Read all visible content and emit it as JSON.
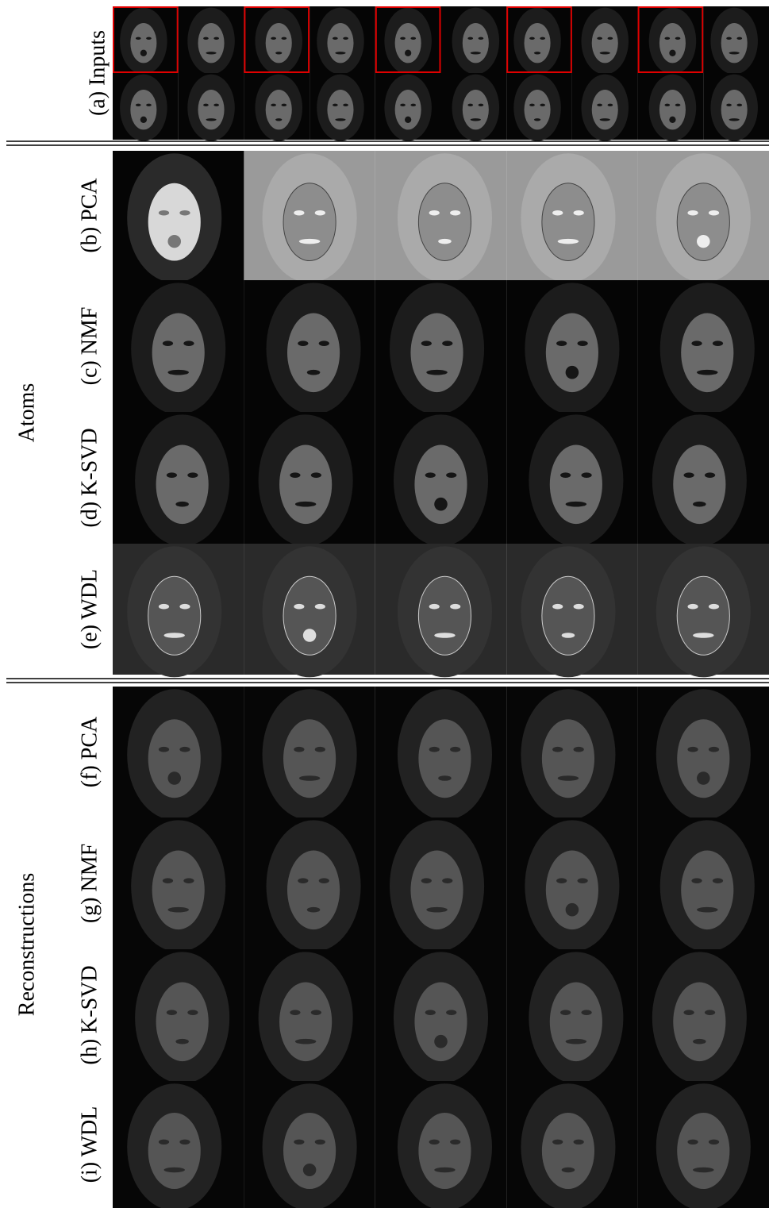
{
  "inputs": {
    "label": "(a) Inputs"
  },
  "atoms": {
    "label": "Atoms",
    "rows": [
      "(b) PCA",
      "(c) NMF",
      "(d) K-SVD",
      "(e) WDL"
    ]
  },
  "reconstructions": {
    "label": "Reconstructions",
    "rows": [
      "(f) PCA",
      "(g) NMF",
      "(h) K-SVD",
      "(i) WDL"
    ]
  }
}
